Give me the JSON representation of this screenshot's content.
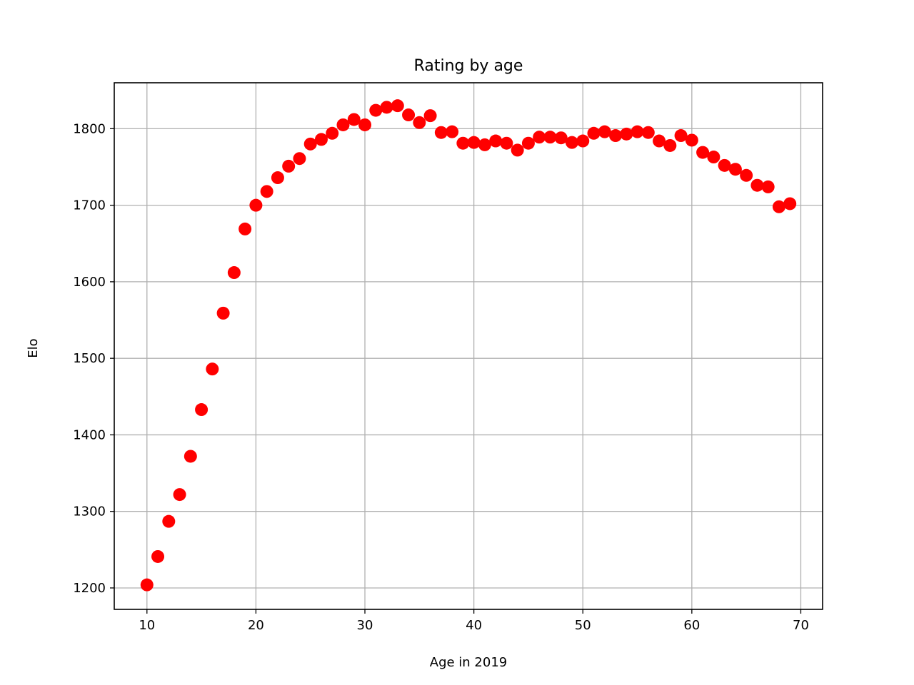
{
  "chart_data": {
    "type": "scatter",
    "title": "Rating by age",
    "xlabel": "Age in 2019",
    "ylabel": "Elo",
    "xlim": [
      7,
      72
    ],
    "ylim": [
      1172,
      1860
    ],
    "xticks": [
      10,
      20,
      30,
      40,
      50,
      60,
      70
    ],
    "yticks": [
      1200,
      1300,
      1400,
      1500,
      1600,
      1700,
      1800
    ],
    "grid": true,
    "marker_color": "#ff0000",
    "series": [
      {
        "x": [
          10,
          11,
          12,
          13,
          14,
          15,
          16,
          17,
          18,
          19,
          20,
          21,
          22,
          23,
          24,
          25,
          26,
          27,
          28,
          29,
          30,
          31,
          32,
          33,
          34,
          35,
          36,
          37,
          38,
          39,
          40,
          41,
          42,
          43,
          44,
          45,
          46,
          47,
          48,
          49,
          50,
          51,
          52,
          53,
          54,
          55,
          56,
          57,
          58,
          59,
          60,
          61,
          62,
          63,
          64,
          65,
          66,
          67,
          68,
          69
        ],
        "y": [
          1204,
          1241,
          1287,
          1322,
          1372,
          1433,
          1486,
          1559,
          1612,
          1669,
          1700,
          1718,
          1736,
          1751,
          1761,
          1780,
          1786,
          1794,
          1805,
          1812,
          1805,
          1824,
          1828,
          1830,
          1818,
          1808,
          1817,
          1795,
          1796,
          1781,
          1782,
          1779,
          1784,
          1781,
          1772,
          1781,
          1789,
          1789,
          1788,
          1782,
          1784,
          1794,
          1796,
          1791,
          1793,
          1796,
          1795,
          1784,
          1778,
          1791,
          1785,
          1769,
          1763,
          1752,
          1747,
          1739,
          1726,
          1724,
          1698,
          1702
        ]
      }
    ]
  }
}
